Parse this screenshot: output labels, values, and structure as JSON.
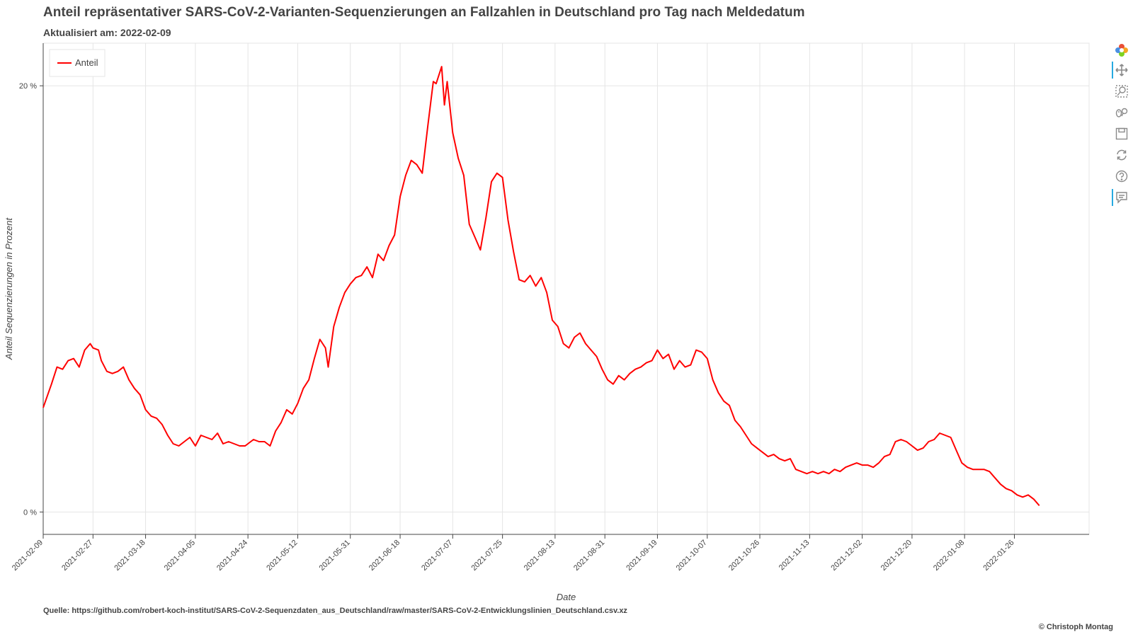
{
  "title": "Anteil repräsentativer SARS-CoV-2-Varianten-Sequenzierungen an Fallzahlen in Deutschland pro Tag nach Meldedatum",
  "subtitle": "Aktualisiert am: 2022-02-09",
  "source": "Quelle: https://github.com/robert-koch-institut/SARS-CoV-2-Sequenzdaten_aus_Deutschland/raw/master/SARS-CoV-2-Entwicklungslinien_Deutschland.csv.xz",
  "copyright": "© Christoph Montag",
  "toolbar": {
    "items": [
      "bokeh-logo-icon",
      "pan-icon",
      "box-zoom-icon",
      "wheel-zoom-icon",
      "save-icon",
      "reset-icon",
      "help-icon",
      "hover-icon"
    ],
    "active": [
      "pan-icon",
      "hover-icon"
    ],
    "accent": "#26aae1"
  },
  "chart_data": {
    "type": "line",
    "title": "Anteil repräsentativer SARS-CoV-2-Varianten-Sequenzierungen an Fallzahlen in Deutschland pro Tag nach Meldedatum",
    "xlabel": "Date",
    "ylabel": "Anteil Sequenzierungen in Prozent",
    "x_ticks": [
      "2021-02-09",
      "2021-02-27",
      "2021-03-18",
      "2021-04-05",
      "2021-04-24",
      "2021-05-12",
      "2021-05-31",
      "2021-06-18",
      "2021-07-07",
      "2021-07-25",
      "2021-08-13",
      "2021-08-31",
      "2021-09-19",
      "2021-10-07",
      "2021-10-26",
      "2021-11-13",
      "2021-12-02",
      "2021-12-20",
      "2022-01-08",
      "2022-01-26"
    ],
    "y_ticks": [
      {
        "value": 0,
        "label": "0 %"
      },
      {
        "value": 20,
        "label": "20 %"
      }
    ],
    "xlim": [
      "2021-02-09",
      "2022-02-22"
    ],
    "ylim": [
      -1.05,
      22.0
    ],
    "grid": true,
    "legend_position": "top-left",
    "series": [
      {
        "name": "Anteil",
        "color": "#ff0000",
        "points": [
          [
            "2021-02-09",
            4.9
          ],
          [
            "2021-02-12",
            6.0
          ],
          [
            "2021-02-14",
            6.8
          ],
          [
            "2021-02-16",
            6.7
          ],
          [
            "2021-02-18",
            7.1
          ],
          [
            "2021-02-20",
            7.2
          ],
          [
            "2021-02-22",
            6.8
          ],
          [
            "2021-02-24",
            7.6
          ],
          [
            "2021-02-26",
            7.9
          ],
          [
            "2021-02-27",
            7.7
          ],
          [
            "2021-03-01",
            7.6
          ],
          [
            "2021-03-02",
            7.1
          ],
          [
            "2021-03-04",
            6.6
          ],
          [
            "2021-03-06",
            6.5
          ],
          [
            "2021-03-08",
            6.6
          ],
          [
            "2021-03-10",
            6.8
          ],
          [
            "2021-03-12",
            6.2
          ],
          [
            "2021-03-14",
            5.8
          ],
          [
            "2021-03-16",
            5.5
          ],
          [
            "2021-03-18",
            4.8
          ],
          [
            "2021-03-20",
            4.5
          ],
          [
            "2021-03-22",
            4.4
          ],
          [
            "2021-03-24",
            4.1
          ],
          [
            "2021-03-26",
            3.6
          ],
          [
            "2021-03-28",
            3.2
          ],
          [
            "2021-03-30",
            3.1
          ],
          [
            "2021-04-01",
            3.3
          ],
          [
            "2021-04-03",
            3.5
          ],
          [
            "2021-04-05",
            3.1
          ],
          [
            "2021-04-07",
            3.6
          ],
          [
            "2021-04-09",
            3.5
          ],
          [
            "2021-04-11",
            3.4
          ],
          [
            "2021-04-13",
            3.7
          ],
          [
            "2021-04-15",
            3.2
          ],
          [
            "2021-04-17",
            3.3
          ],
          [
            "2021-04-19",
            3.2
          ],
          [
            "2021-04-21",
            3.1
          ],
          [
            "2021-04-23",
            3.1
          ],
          [
            "2021-04-24",
            3.2
          ],
          [
            "2021-04-26",
            3.4
          ],
          [
            "2021-04-28",
            3.3
          ],
          [
            "2021-04-30",
            3.3
          ],
          [
            "2021-05-02",
            3.1
          ],
          [
            "2021-05-04",
            3.8
          ],
          [
            "2021-05-06",
            4.2
          ],
          [
            "2021-05-08",
            4.8
          ],
          [
            "2021-05-10",
            4.6
          ],
          [
            "2021-05-12",
            5.1
          ],
          [
            "2021-05-14",
            5.8
          ],
          [
            "2021-05-16",
            6.2
          ],
          [
            "2021-05-18",
            7.2
          ],
          [
            "2021-05-20",
            8.1
          ],
          [
            "2021-05-22",
            7.7
          ],
          [
            "2021-05-23",
            6.8
          ],
          [
            "2021-05-25",
            8.7
          ],
          [
            "2021-05-27",
            9.6
          ],
          [
            "2021-05-29",
            10.3
          ],
          [
            "2021-05-31",
            10.7
          ],
          [
            "2021-06-02",
            11.0
          ],
          [
            "2021-06-04",
            11.1
          ],
          [
            "2021-06-06",
            11.5
          ],
          [
            "2021-06-08",
            11.0
          ],
          [
            "2021-06-10",
            12.1
          ],
          [
            "2021-06-12",
            11.8
          ],
          [
            "2021-06-14",
            12.5
          ],
          [
            "2021-06-16",
            13.0
          ],
          [
            "2021-06-18",
            14.8
          ],
          [
            "2021-06-20",
            15.8
          ],
          [
            "2021-06-22",
            16.5
          ],
          [
            "2021-06-24",
            16.3
          ],
          [
            "2021-06-26",
            15.9
          ],
          [
            "2021-06-28",
            18.1
          ],
          [
            "2021-06-30",
            20.2
          ],
          [
            "2021-07-01",
            20.1
          ],
          [
            "2021-07-03",
            20.9
          ],
          [
            "2021-07-04",
            19.1
          ],
          [
            "2021-07-05",
            20.2
          ],
          [
            "2021-07-07",
            17.8
          ],
          [
            "2021-07-09",
            16.6
          ],
          [
            "2021-07-11",
            15.8
          ],
          [
            "2021-07-13",
            13.5
          ],
          [
            "2021-07-15",
            12.9
          ],
          [
            "2021-07-17",
            12.3
          ],
          [
            "2021-07-19",
            13.8
          ],
          [
            "2021-07-21",
            15.5
          ],
          [
            "2021-07-23",
            15.9
          ],
          [
            "2021-07-25",
            15.7
          ],
          [
            "2021-07-27",
            13.7
          ],
          [
            "2021-07-29",
            12.2
          ],
          [
            "2021-07-31",
            10.9
          ],
          [
            "2021-08-02",
            10.8
          ],
          [
            "2021-08-04",
            11.1
          ],
          [
            "2021-08-06",
            10.6
          ],
          [
            "2021-08-08",
            11.0
          ],
          [
            "2021-08-10",
            10.3
          ],
          [
            "2021-08-12",
            9.0
          ],
          [
            "2021-08-14",
            8.7
          ],
          [
            "2021-08-16",
            7.9
          ],
          [
            "2021-08-18",
            7.7
          ],
          [
            "2021-08-20",
            8.2
          ],
          [
            "2021-08-22",
            8.4
          ],
          [
            "2021-08-24",
            7.9
          ],
          [
            "2021-08-26",
            7.6
          ],
          [
            "2021-08-28",
            7.3
          ],
          [
            "2021-08-30",
            6.7
          ],
          [
            "2021-09-01",
            6.2
          ],
          [
            "2021-09-03",
            6.0
          ],
          [
            "2021-09-05",
            6.4
          ],
          [
            "2021-09-07",
            6.2
          ],
          [
            "2021-09-09",
            6.5
          ],
          [
            "2021-09-11",
            6.7
          ],
          [
            "2021-09-13",
            6.8
          ],
          [
            "2021-09-15",
            7.0
          ],
          [
            "2021-09-17",
            7.1
          ],
          [
            "2021-09-19",
            7.6
          ],
          [
            "2021-09-21",
            7.2
          ],
          [
            "2021-09-23",
            7.4
          ],
          [
            "2021-09-25",
            6.7
          ],
          [
            "2021-09-27",
            7.1
          ],
          [
            "2021-09-29",
            6.8
          ],
          [
            "2021-10-01",
            6.9
          ],
          [
            "2021-10-03",
            7.6
          ],
          [
            "2021-10-05",
            7.5
          ],
          [
            "2021-10-07",
            7.2
          ],
          [
            "2021-10-09",
            6.2
          ],
          [
            "2021-10-11",
            5.6
          ],
          [
            "2021-10-13",
            5.2
          ],
          [
            "2021-10-15",
            5.0
          ],
          [
            "2021-10-17",
            4.3
          ],
          [
            "2021-10-19",
            4.0
          ],
          [
            "2021-10-21",
            3.6
          ],
          [
            "2021-10-23",
            3.2
          ],
          [
            "2021-10-25",
            3.0
          ],
          [
            "2021-10-27",
            2.8
          ],
          [
            "2021-10-29",
            2.6
          ],
          [
            "2021-10-31",
            2.7
          ],
          [
            "2021-11-02",
            2.5
          ],
          [
            "2021-11-04",
            2.4
          ],
          [
            "2021-11-06",
            2.5
          ],
          [
            "2021-11-08",
            2.0
          ],
          [
            "2021-11-10",
            1.9
          ],
          [
            "2021-11-12",
            1.8
          ],
          [
            "2021-11-14",
            1.9
          ],
          [
            "2021-11-16",
            1.8
          ],
          [
            "2021-11-18",
            1.9
          ],
          [
            "2021-11-20",
            1.8
          ],
          [
            "2021-11-22",
            2.0
          ],
          [
            "2021-11-24",
            1.9
          ],
          [
            "2021-11-26",
            2.1
          ],
          [
            "2021-11-28",
            2.2
          ],
          [
            "2021-11-30",
            2.3
          ],
          [
            "2021-12-02",
            2.2
          ],
          [
            "2021-12-04",
            2.2
          ],
          [
            "2021-12-06",
            2.1
          ],
          [
            "2021-12-08",
            2.3
          ],
          [
            "2021-12-10",
            2.6
          ],
          [
            "2021-12-12",
            2.7
          ],
          [
            "2021-12-14",
            3.3
          ],
          [
            "2021-12-16",
            3.4
          ],
          [
            "2021-12-18",
            3.3
          ],
          [
            "2021-12-20",
            3.1
          ],
          [
            "2021-12-22",
            2.9
          ],
          [
            "2021-12-24",
            3.0
          ],
          [
            "2021-12-26",
            3.3
          ],
          [
            "2021-12-28",
            3.4
          ],
          [
            "2021-12-30",
            3.7
          ],
          [
            "2022-01-01",
            3.6
          ],
          [
            "2022-01-03",
            3.5
          ],
          [
            "2022-01-05",
            2.9
          ],
          [
            "2022-01-07",
            2.3
          ],
          [
            "2022-01-09",
            2.1
          ],
          [
            "2022-01-11",
            2.0
          ],
          [
            "2022-01-13",
            2.0
          ],
          [
            "2022-01-15",
            2.0
          ],
          [
            "2022-01-17",
            1.9
          ],
          [
            "2022-01-19",
            1.6
          ],
          [
            "2022-01-21",
            1.3
          ],
          [
            "2022-01-23",
            1.1
          ],
          [
            "2022-01-25",
            1.0
          ],
          [
            "2022-01-27",
            0.8
          ],
          [
            "2022-01-29",
            0.7
          ],
          [
            "2022-01-31",
            0.8
          ],
          [
            "2022-02-02",
            0.6
          ],
          [
            "2022-02-04",
            0.3
          ]
        ]
      }
    ]
  }
}
